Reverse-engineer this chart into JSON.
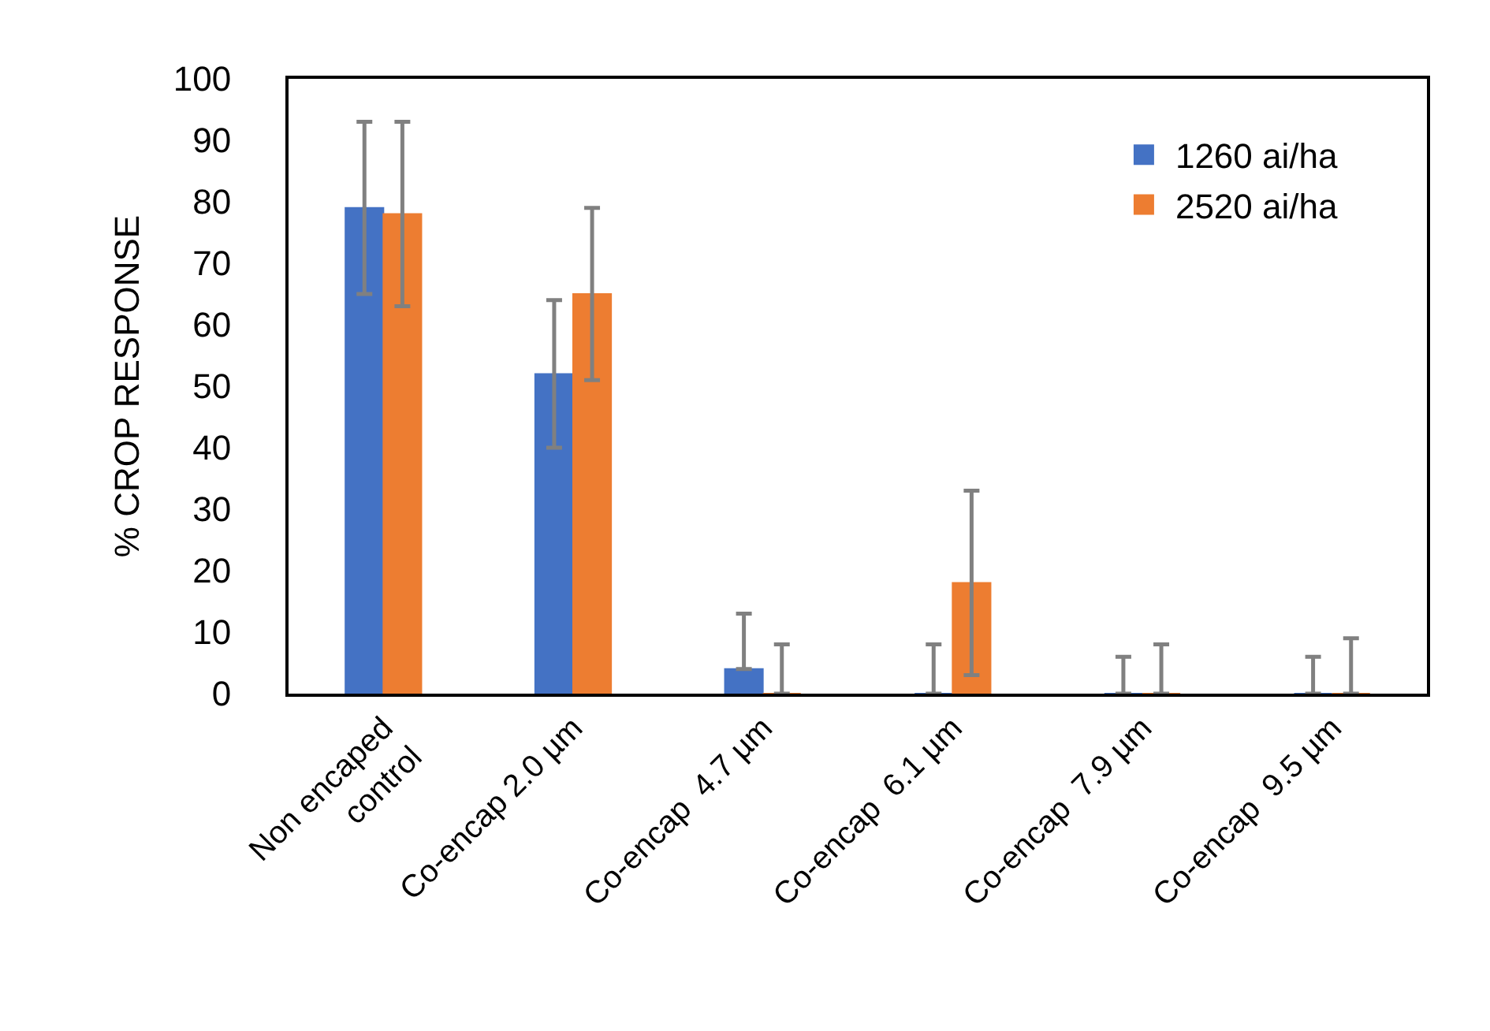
{
  "chart_data": {
    "type": "bar",
    "ylabel": "% CROP RESPONSE",
    "categories": [
      "Non encaped\ncontrol",
      "Co-encap 2.0 µm",
      "Co-encap  4.7 µm",
      "Co-encap  6.1 µm",
      "Co-encap  7.9 µm",
      "Co-encap  9.5 µm"
    ],
    "series": [
      {
        "name": "1260 ai/ha",
        "color": "#4472c4",
        "values": [
          79,
          52,
          4,
          0,
          0,
          0
        ],
        "errors": [
          [
            65,
            93
          ],
          [
            40,
            64
          ],
          [
            4,
            13
          ],
          [
            0,
            8
          ],
          [
            0,
            6
          ],
          [
            0,
            6
          ]
        ]
      },
      {
        "name": "2520 ai/ha",
        "color": "#ed7d31",
        "values": [
          78,
          65,
          0,
          18,
          0,
          0
        ],
        "errors": [
          [
            63,
            93
          ],
          [
            51,
            79
          ],
          [
            0,
            8
          ],
          [
            3,
            33
          ],
          [
            0,
            8
          ],
          [
            0,
            9
          ]
        ]
      }
    ],
    "ylim": [
      0,
      100
    ],
    "yticks": [
      0,
      10,
      20,
      30,
      40,
      50,
      60,
      70,
      80,
      90,
      100
    ],
    "grid": false,
    "legend": "top right"
  }
}
